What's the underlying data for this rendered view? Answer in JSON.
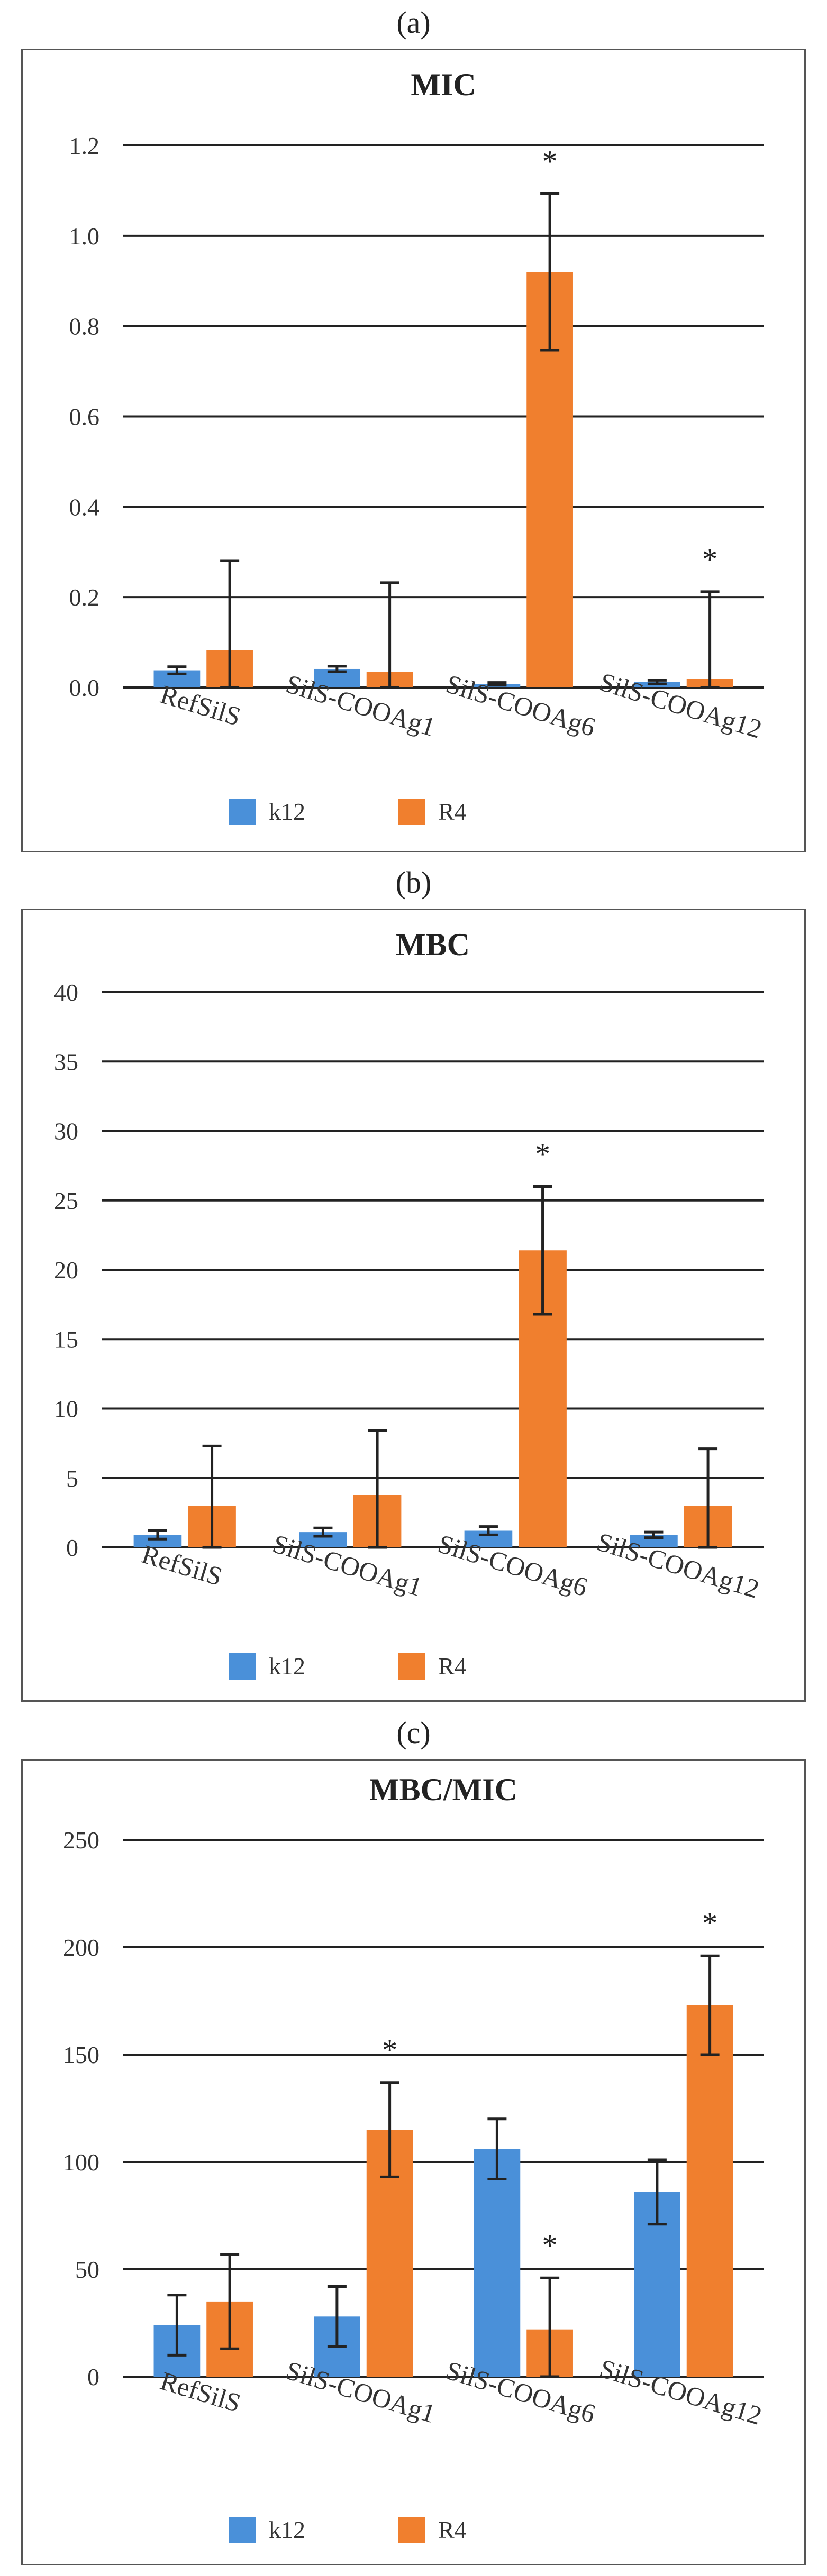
{
  "panels": [
    {
      "label": "(a)"
    },
    {
      "label": "(b)"
    },
    {
      "label": "(c)"
    }
  ],
  "colors": {
    "k12": "#4a90d9",
    "R4": "#f07f2e",
    "grid": "#222222",
    "error_bar": "#222222"
  },
  "significance_marker": "*",
  "chart_data": [
    {
      "type": "bar",
      "title": "MIC",
      "categories": [
        "RefSilS",
        "SilS-COOAg1",
        "SilS-COOAg6",
        "SilS-COOAg12"
      ],
      "series": [
        {
          "name": "k12",
          "values": [
            0.038,
            0.041,
            0.008,
            0.012
          ],
          "errors": [
            0.008,
            0.006,
            0.003,
            0.004
          ],
          "significant": [
            false,
            false,
            false,
            false
          ]
        },
        {
          "name": "R4",
          "values": [
            0.083,
            0.034,
            0.92,
            0.019
          ],
          "errors": [
            0.198,
            0.198,
            0.173,
            0.193
          ],
          "significant": [
            false,
            false,
            true,
            true
          ]
        }
      ],
      "ylim": [
        0,
        1.2
      ],
      "yticks": [
        "0.0",
        "0.2",
        "0.4",
        "0.6",
        "0.8",
        "1.0",
        "1.2"
      ],
      "xlabel": "",
      "ylabel": "",
      "grid": true,
      "legend": "bottom"
    },
    {
      "type": "bar",
      "title": "MBC",
      "categories": [
        "RefSilS",
        "SilS-COOAg1",
        "SilS-COOAg6",
        "SilS-COOAg12"
      ],
      "series": [
        {
          "name": "k12",
          "values": [
            0.9,
            1.1,
            1.2,
            0.9
          ],
          "errors": [
            0.3,
            0.3,
            0.3,
            0.2
          ],
          "significant": [
            false,
            false,
            false,
            false
          ]
        },
        {
          "name": "R4",
          "values": [
            3.0,
            3.8,
            21.4,
            3.0
          ],
          "errors": [
            4.3,
            4.6,
            4.6,
            4.1
          ],
          "significant": [
            false,
            false,
            true,
            false
          ]
        }
      ],
      "ylim": [
        0,
        40
      ],
      "yticks": [
        "0",
        "5",
        "10",
        "15",
        "20",
        "25",
        "30",
        "35",
        "40"
      ],
      "xlabel": "",
      "ylabel": "",
      "grid": true,
      "legend": "bottom"
    },
    {
      "type": "bar",
      "title": "MBC/MIC",
      "categories": [
        "RefSilS",
        "SilS-COOAg1",
        "SilS-COOAg6",
        "SilS-COOAg12"
      ],
      "series": [
        {
          "name": "k12",
          "values": [
            24,
            28,
            106,
            86
          ],
          "errors": [
            14,
            14,
            14,
            15
          ],
          "significant": [
            false,
            false,
            false,
            false
          ]
        },
        {
          "name": "R4",
          "values": [
            35,
            115,
            22,
            173
          ],
          "errors": [
            22,
            22,
            24,
            23
          ],
          "significant": [
            false,
            true,
            true,
            true
          ]
        }
      ],
      "ylim": [
        0,
        250
      ],
      "yticks": [
        "0",
        "50",
        "100",
        "150",
        "200",
        "250"
      ],
      "xlabel": "",
      "ylabel": "",
      "grid": true,
      "legend": "bottom"
    }
  ]
}
